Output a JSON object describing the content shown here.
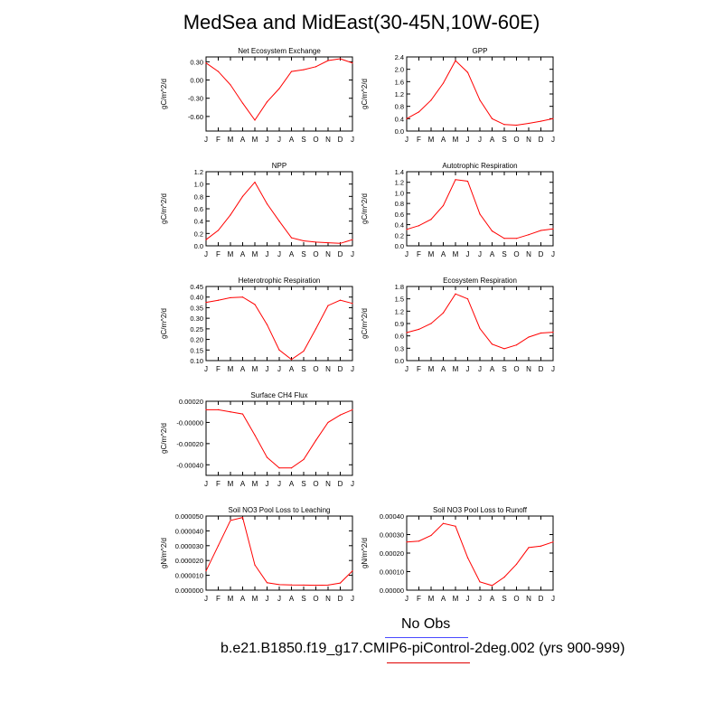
{
  "title": "MedSea and MidEast(30-45N,10W-60E)",
  "legend": [
    {
      "label": "No Obs",
      "color": "#4a4aff"
    },
    {
      "label": "b.e21.B1850.f19_g17.CMIP6-piControl-2deg.002 (yrs 900-999)",
      "color": "#e00000"
    }
  ],
  "colors": {
    "line": "#ff0000",
    "axis": "#000000"
  },
  "chart_data": [
    {
      "type": "line",
      "title": "Net Ecosystem Exchange",
      "ylabel": "gC/m^2/d",
      "categories": [
        "J",
        "F",
        "M",
        "A",
        "M",
        "J",
        "J",
        "A",
        "S",
        "O",
        "N",
        "D",
        "J"
      ],
      "values": [
        0.28,
        0.14,
        -0.08,
        -0.38,
        -0.66,
        -0.36,
        -0.14,
        0.14,
        0.17,
        0.22,
        0.32,
        0.35,
        0.28
      ],
      "ylim": [
        -0.84,
        0.38
      ],
      "yticks": [
        -0.6,
        -0.3,
        0.0,
        0.3
      ],
      "yticklabels": [
        "-0.60",
        "-0.30",
        "0.00",
        "0.30"
      ]
    },
    {
      "type": "line",
      "title": "GPP",
      "ylabel": "gC/m^2/d",
      "categories": [
        "J",
        "F",
        "M",
        "A",
        "M",
        "J",
        "J",
        "A",
        "S",
        "O",
        "N",
        "D",
        "J"
      ],
      "values": [
        0.4,
        0.62,
        1.0,
        1.55,
        2.28,
        1.9,
        1.0,
        0.4,
        0.21,
        0.19,
        0.25,
        0.32,
        0.4
      ],
      "ylim": [
        0,
        2.4
      ],
      "yticks": [
        0,
        0.4,
        0.8,
        1.2,
        1.6,
        2.0,
        2.4
      ],
      "yticklabels": [
        "0.0",
        "0.4",
        "0.8",
        "1.2",
        "1.6",
        "2.0",
        "2.4"
      ]
    },
    {
      "type": "line",
      "title": "NPP",
      "ylabel": "gC/m^2/d",
      "categories": [
        "J",
        "F",
        "M",
        "A",
        "M",
        "J",
        "J",
        "A",
        "S",
        "O",
        "N",
        "D",
        "J"
      ],
      "values": [
        0.1,
        0.25,
        0.5,
        0.8,
        1.03,
        0.68,
        0.4,
        0.13,
        0.08,
        0.06,
        0.05,
        0.04,
        0.1
      ],
      "ylim": [
        0,
        1.2
      ],
      "yticks": [
        0,
        0.2,
        0.4,
        0.6,
        0.8,
        1.0,
        1.2
      ],
      "yticklabels": [
        "0.0",
        "0.2",
        "0.4",
        "0.6",
        "0.8",
        "1.0",
        "1.2"
      ]
    },
    {
      "type": "line",
      "title": "Autotrophic Respiration",
      "ylabel": "gC/m^2/d",
      "categories": [
        "J",
        "F",
        "M",
        "A",
        "M",
        "J",
        "J",
        "A",
        "S",
        "O",
        "N",
        "D",
        "J"
      ],
      "values": [
        0.31,
        0.38,
        0.5,
        0.76,
        1.25,
        1.22,
        0.6,
        0.28,
        0.14,
        0.14,
        0.21,
        0.29,
        0.32
      ],
      "ylim": [
        0,
        1.4
      ],
      "yticks": [
        0,
        0.2,
        0.4,
        0.6,
        0.8,
        1.0,
        1.2,
        1.4
      ],
      "yticklabels": [
        "0.0",
        "0.2",
        "0.4",
        "0.6",
        "0.8",
        "1.0",
        "1.2",
        "1.4"
      ]
    },
    {
      "type": "line",
      "title": "Heterotrophic Respiration",
      "ylabel": "gC/m^2/d",
      "categories": [
        "J",
        "F",
        "M",
        "A",
        "M",
        "J",
        "J",
        "A",
        "S",
        "O",
        "N",
        "D",
        "J"
      ],
      "values": [
        0.375,
        0.385,
        0.397,
        0.4,
        0.365,
        0.27,
        0.15,
        0.105,
        0.145,
        0.25,
        0.36,
        0.385,
        0.37
      ],
      "ylim": [
        0.1,
        0.45
      ],
      "yticks": [
        0.1,
        0.15,
        0.2,
        0.25,
        0.3,
        0.35,
        0.4,
        0.45
      ],
      "yticklabels": [
        "0.10",
        "0.15",
        "0.20",
        "0.25",
        "0.30",
        "0.35",
        "0.40",
        "0.45"
      ]
    },
    {
      "type": "line",
      "title": "Ecosystem Respiration",
      "ylabel": "gC/m^2/d",
      "categories": [
        "J",
        "F",
        "M",
        "A",
        "M",
        "J",
        "J",
        "A",
        "S",
        "O",
        "N",
        "D",
        "J"
      ],
      "values": [
        0.68,
        0.76,
        0.9,
        1.16,
        1.62,
        1.5,
        0.78,
        0.4,
        0.29,
        0.38,
        0.57,
        0.67,
        0.69
      ],
      "ylim": [
        0,
        1.8
      ],
      "yticks": [
        0,
        0.3,
        0.6,
        0.9,
        1.2,
        1.5,
        1.8
      ],
      "yticklabels": [
        "0.0",
        "0.3",
        "0.6",
        "0.9",
        "1.2",
        "1.5",
        "1.8"
      ]
    },
    {
      "type": "line",
      "title": "Surface CH4 Flux",
      "ylabel": "gC/m^2/d",
      "categories": [
        "J",
        "F",
        "M",
        "A",
        "M",
        "J",
        "J",
        "A",
        "S",
        "O",
        "N",
        "D",
        "J"
      ],
      "values": [
        0.00012,
        0.00012,
        0.0001,
        8e-05,
        -0.00012,
        -0.00033,
        -0.00043,
        -0.00043,
        -0.00035,
        -0.00017,
        0.0,
        7e-05,
        0.00012
      ],
      "ylim": [
        -0.0005,
        0.0002
      ],
      "yticks": [
        -0.0004,
        -0.0002,
        0.0,
        0.0002
      ],
      "yticklabels": [
        "-0.00040",
        "-0.00020",
        "-0.00000",
        "0.00020"
      ]
    },
    {
      "type": "line",
      "title": "Soil NO3 Pool Loss to Leaching",
      "ylabel": "gN/m^2/d",
      "categories": [
        "J",
        "F",
        "M",
        "A",
        "M",
        "J",
        "J",
        "A",
        "S",
        "O",
        "N",
        "D",
        "J"
      ],
      "values": [
        1.3e-05,
        3e-05,
        4.7e-05,
        4.9e-05,
        1.7e-05,
        5e-06,
        3.7e-06,
        3.5e-06,
        3.4e-06,
        3.3e-06,
        3.4e-06,
        4.8e-06,
        1.3e-05
      ],
      "ylim": [
        0,
        5e-05
      ],
      "yticks": [
        0,
        1e-05,
        2e-05,
        3e-05,
        4e-05,
        5e-05
      ],
      "yticklabels": [
        "0.000000",
        "0.000010",
        "0.000020",
        "0.000030",
        "0.000040",
        "0.000050"
      ]
    },
    {
      "type": "line",
      "title": "Soil NO3 Pool Loss to Runoff",
      "ylabel": "gN/m^2/d",
      "categories": [
        "J",
        "F",
        "M",
        "A",
        "M",
        "J",
        "J",
        "A",
        "S",
        "O",
        "N",
        "D",
        "J"
      ],
      "values": [
        0.00026,
        0.000265,
        0.000295,
        0.00036,
        0.000345,
        0.000175,
        4.5e-05,
        2.5e-05,
        7e-05,
        0.00014,
        0.00023,
        0.000238,
        0.00026
      ],
      "ylim": [
        0,
        0.0004
      ],
      "yticks": [
        0,
        0.0001,
        0.0002,
        0.0003,
        0.0004
      ],
      "yticklabels": [
        "0.00000",
        "0.00010",
        "0.00020",
        "0.00030",
        "0.00040"
      ]
    }
  ]
}
